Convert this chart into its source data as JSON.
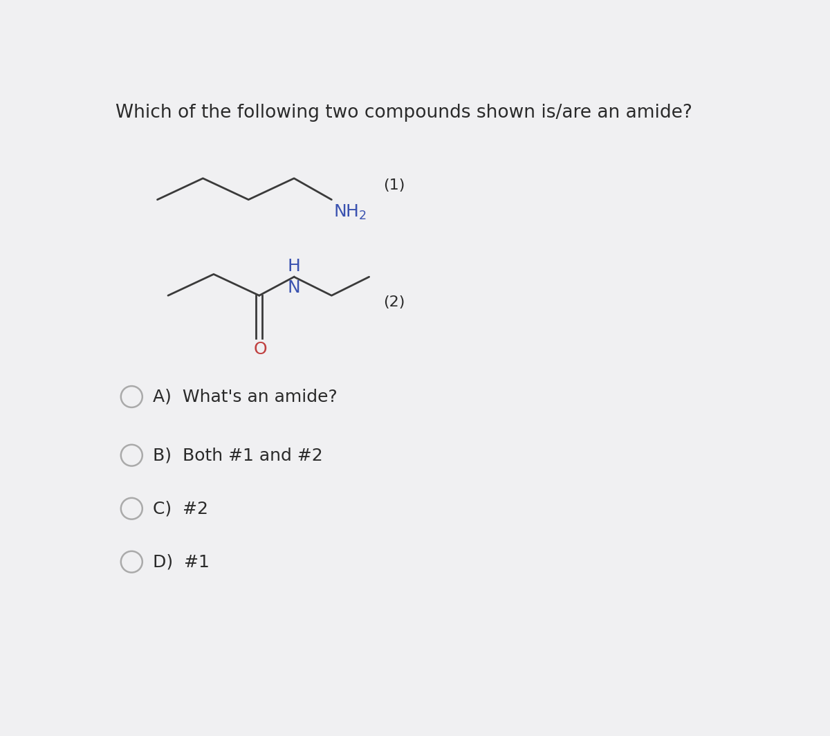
{
  "title": "Which of the following two compounds shown is/are an amide?",
  "title_fontsize": 19,
  "background_color": "#f0f0f2",
  "text_color": "#2a2a2a",
  "blue_color": "#3a52b0",
  "red_color": "#c04040",
  "bond_color": "#3a3a3a",
  "circle_color": "#aaaaaa",
  "choices": [
    "A)  What's an amide?",
    "B)  Both #1 and #2",
    "C)  #2",
    "D)  #1"
  ],
  "label1": "(1)",
  "label2": "(2)"
}
